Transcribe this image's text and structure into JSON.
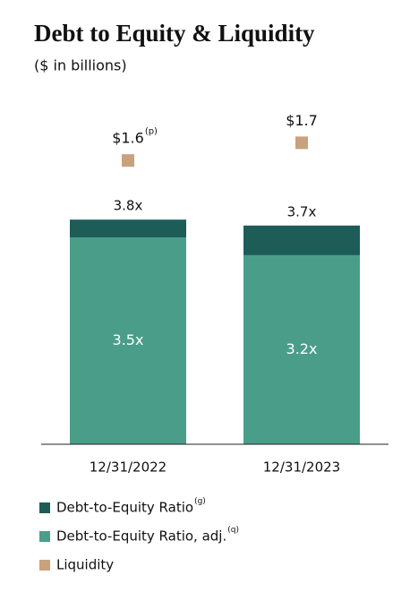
{
  "chart_data": {
    "type": "bar",
    "title": "Debt to Equity & Liquidity",
    "subtitle": "($ in billions)",
    "categories": [
      "12/31/2022",
      "12/31/2023"
    ],
    "series": [
      {
        "name": "Debt-to-Equity Ratio",
        "note": "(g)",
        "color": "#1e5c58",
        "marker": "bar",
        "values": [
          3.8,
          3.7
        ],
        "value_labels": [
          "3.8x",
          "3.7x"
        ]
      },
      {
        "name": "Debt-to-Equity Ratio, adj.",
        "note": "(q)",
        "color": "#4a9e89",
        "marker": "bar",
        "values": [
          3.5,
          3.2
        ],
        "value_labels": [
          "3.5x",
          "3.2x"
        ]
      },
      {
        "name": "Liquidity",
        "color": "#c8a27c",
        "marker": "square",
        "axis": "y2",
        "values": [
          1.6,
          1.7
        ],
        "value_labels": [
          "$1.6",
          "$1.7"
        ],
        "value_label_notes": [
          "(p)",
          null
        ]
      }
    ],
    "ylim": [
      0,
      6
    ],
    "y2lim": [
      0,
      2
    ],
    "grid": false
  }
}
